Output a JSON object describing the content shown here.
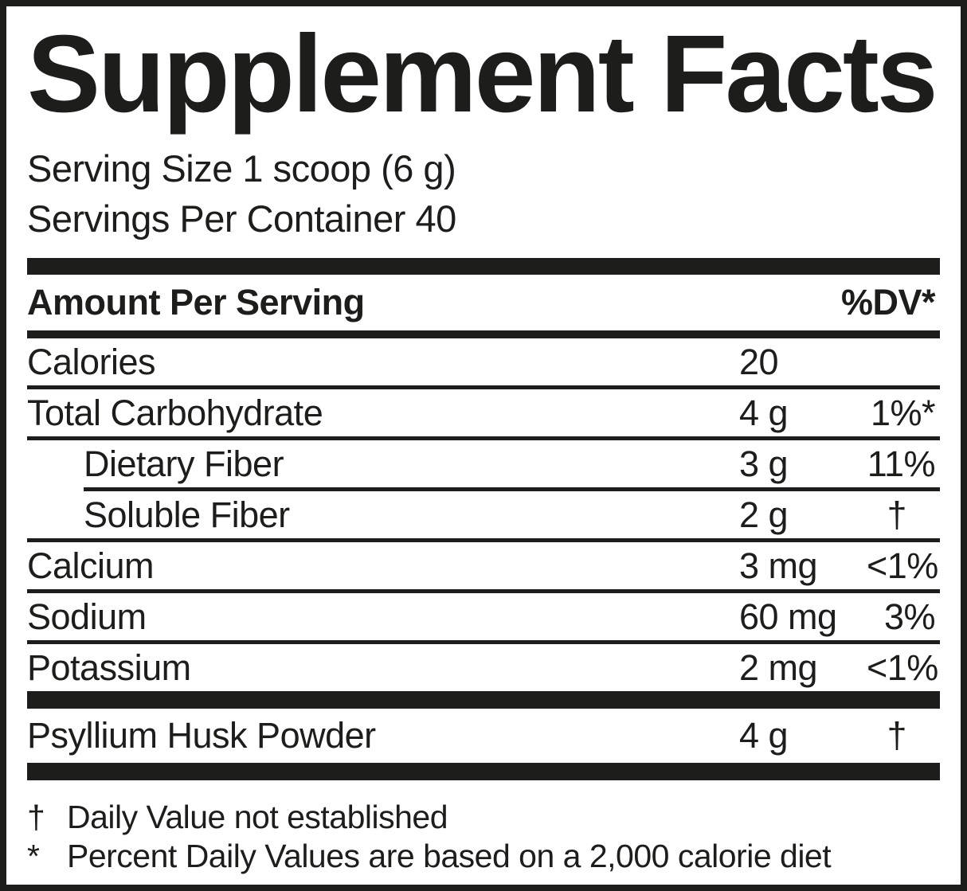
{
  "label": {
    "title": "Supplement Facts",
    "serving": {
      "size": "Serving Size 1 scoop (6 g)",
      "per_container": "Servings Per Container 40"
    },
    "table": {
      "header": {
        "amount": "Amount Per Serving",
        "dv": "%DV*"
      },
      "rows": [
        {
          "name": "Calories",
          "amount": "20",
          "dv": ""
        },
        {
          "name": "Total Carbohydrate",
          "amount": "4 g",
          "dv": "1%*"
        },
        {
          "name": "Dietary Fiber",
          "amount": "3 g",
          "dv": "11%"
        },
        {
          "name": "Soluble Fiber",
          "amount": "2 g",
          "dv": "†"
        },
        {
          "name": "Calcium",
          "amount": "3 mg",
          "dv": "<1%"
        },
        {
          "name": "Sodium",
          "amount": "60 mg",
          "dv": "3%"
        },
        {
          "name": "Potassium",
          "amount": "2 mg",
          "dv": "<1%"
        },
        {
          "name": "Psyllium Husk Powder",
          "amount": "4 g",
          "dv": "†"
        }
      ]
    },
    "footnotes": [
      {
        "marker": "†",
        "text": "Daily Value not established"
      },
      {
        "marker": "*",
        "text": "Percent Daily Values are based on a 2,000 calorie diet"
      }
    ],
    "colors": {
      "ink": "#1d1d1b",
      "background": "#ffffff"
    }
  }
}
